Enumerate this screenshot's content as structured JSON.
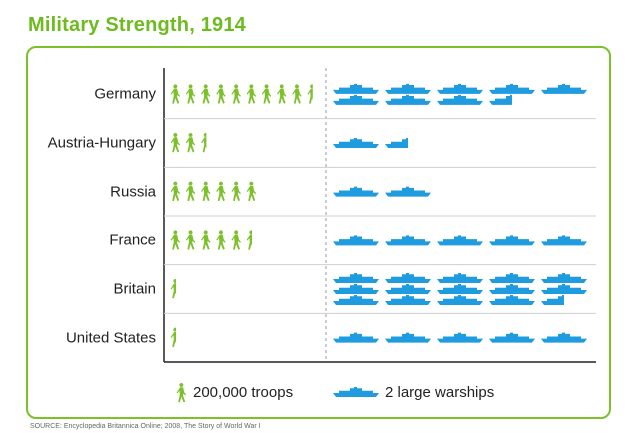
{
  "title": "Military Strength, 1914",
  "source": "SOURCE: Encyclopedia Britannica Online; 2008, The Story of World War I",
  "legend": {
    "troops_label": "200,000 troops",
    "warships_label": "2 large warships"
  },
  "colors": {
    "title": "#6dbb1e",
    "troops": "#7cc02a",
    "warships": "#1f9be0",
    "frame": "#7cc02a"
  },
  "chart_data": {
    "type": "pictogram",
    "title": "Military Strength, 1914",
    "categories": [
      "Germany",
      "Austria-Hungary",
      "Russia",
      "France",
      "Britain",
      "United States"
    ],
    "series": [
      {
        "name": "200,000 troops",
        "unit_value": 200000,
        "values": [
          9.5,
          2.5,
          6.0,
          5.5,
          0.5,
          0.5
        ]
      },
      {
        "name": "2 large warships",
        "unit_value": 2,
        "values": [
          8.5,
          1.5,
          2.0,
          5.0,
          14.5,
          5.0
        ]
      }
    ]
  }
}
